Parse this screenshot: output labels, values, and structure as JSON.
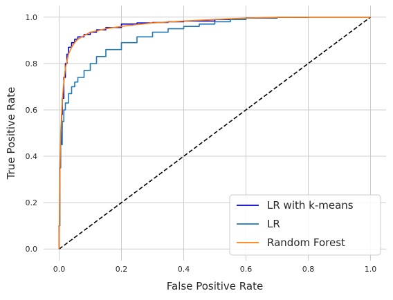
{
  "chart_data": {
    "type": "line",
    "title": "",
    "xlabel": "False Positive Rate",
    "ylabel": "True Positive Rate",
    "xlim": [
      -0.05,
      1.05
    ],
    "ylim": [
      -0.05,
      1.05
    ],
    "x_ticks": [
      "0.0",
      "0.2",
      "0.4",
      "0.6",
      "0.8",
      "1.0"
    ],
    "y_ticks": [
      "0.0",
      "0.2",
      "0.4",
      "0.6",
      "0.8",
      "1.0"
    ],
    "grid": true,
    "legend_position": "lower-right",
    "series": [
      {
        "name": "LR with k-means",
        "color": "#0000cc",
        "step": true,
        "x": [
          0.0,
          0.0,
          0.002,
          0.004,
          0.006,
          0.008,
          0.01,
          0.015,
          0.02,
          0.025,
          0.03,
          0.04,
          0.05,
          0.06,
          0.08,
          0.1,
          0.12,
          0.15,
          0.2,
          0.25,
          0.3,
          0.35,
          0.4,
          0.5,
          0.6,
          0.7,
          0.8,
          0.9,
          1.0
        ],
        "y": [
          0.0,
          0.1,
          0.35,
          0.45,
          0.52,
          0.58,
          0.65,
          0.74,
          0.8,
          0.84,
          0.87,
          0.89,
          0.905,
          0.915,
          0.925,
          0.935,
          0.945,
          0.955,
          0.97,
          0.975,
          0.977,
          0.98,
          0.983,
          0.99,
          0.996,
          0.999,
          1.0,
          1.0,
          1.0
        ]
      },
      {
        "name": "LR",
        "color": "#1f77b4",
        "step": true,
        "x": [
          0.0,
          0.0,
          0.002,
          0.005,
          0.01,
          0.015,
          0.02,
          0.03,
          0.04,
          0.05,
          0.06,
          0.08,
          0.1,
          0.12,
          0.15,
          0.2,
          0.25,
          0.3,
          0.35,
          0.4,
          0.45,
          0.5,
          0.55,
          0.6,
          0.7,
          0.8,
          0.9,
          1.0
        ],
        "y": [
          0.0,
          0.1,
          0.35,
          0.45,
          0.55,
          0.6,
          0.63,
          0.67,
          0.7,
          0.72,
          0.74,
          0.77,
          0.8,
          0.83,
          0.86,
          0.89,
          0.915,
          0.935,
          0.95,
          0.96,
          0.97,
          0.98,
          0.99,
          0.997,
          0.999,
          1.0,
          1.0,
          1.0
        ]
      },
      {
        "name": "Random Forest",
        "color": "#ff7f0e",
        "step": false,
        "x": [
          0.0,
          0.002,
          0.005,
          0.01,
          0.015,
          0.02,
          0.03,
          0.04,
          0.05,
          0.06,
          0.08,
          0.1,
          0.12,
          0.15,
          0.2,
          0.25,
          0.3,
          0.4,
          0.5,
          0.6,
          0.7,
          0.8,
          0.9,
          1.0
        ],
        "y": [
          0.0,
          0.32,
          0.5,
          0.64,
          0.72,
          0.78,
          0.84,
          0.87,
          0.89,
          0.905,
          0.92,
          0.935,
          0.94,
          0.95,
          0.96,
          0.968,
          0.975,
          0.983,
          0.99,
          0.996,
          0.999,
          1.0,
          1.0,
          1.0
        ]
      },
      {
        "name": "",
        "color": "#000000",
        "dashed": true,
        "step": false,
        "x": [
          0.0,
          1.0
        ],
        "y": [
          0.0,
          1.0
        ]
      }
    ]
  }
}
